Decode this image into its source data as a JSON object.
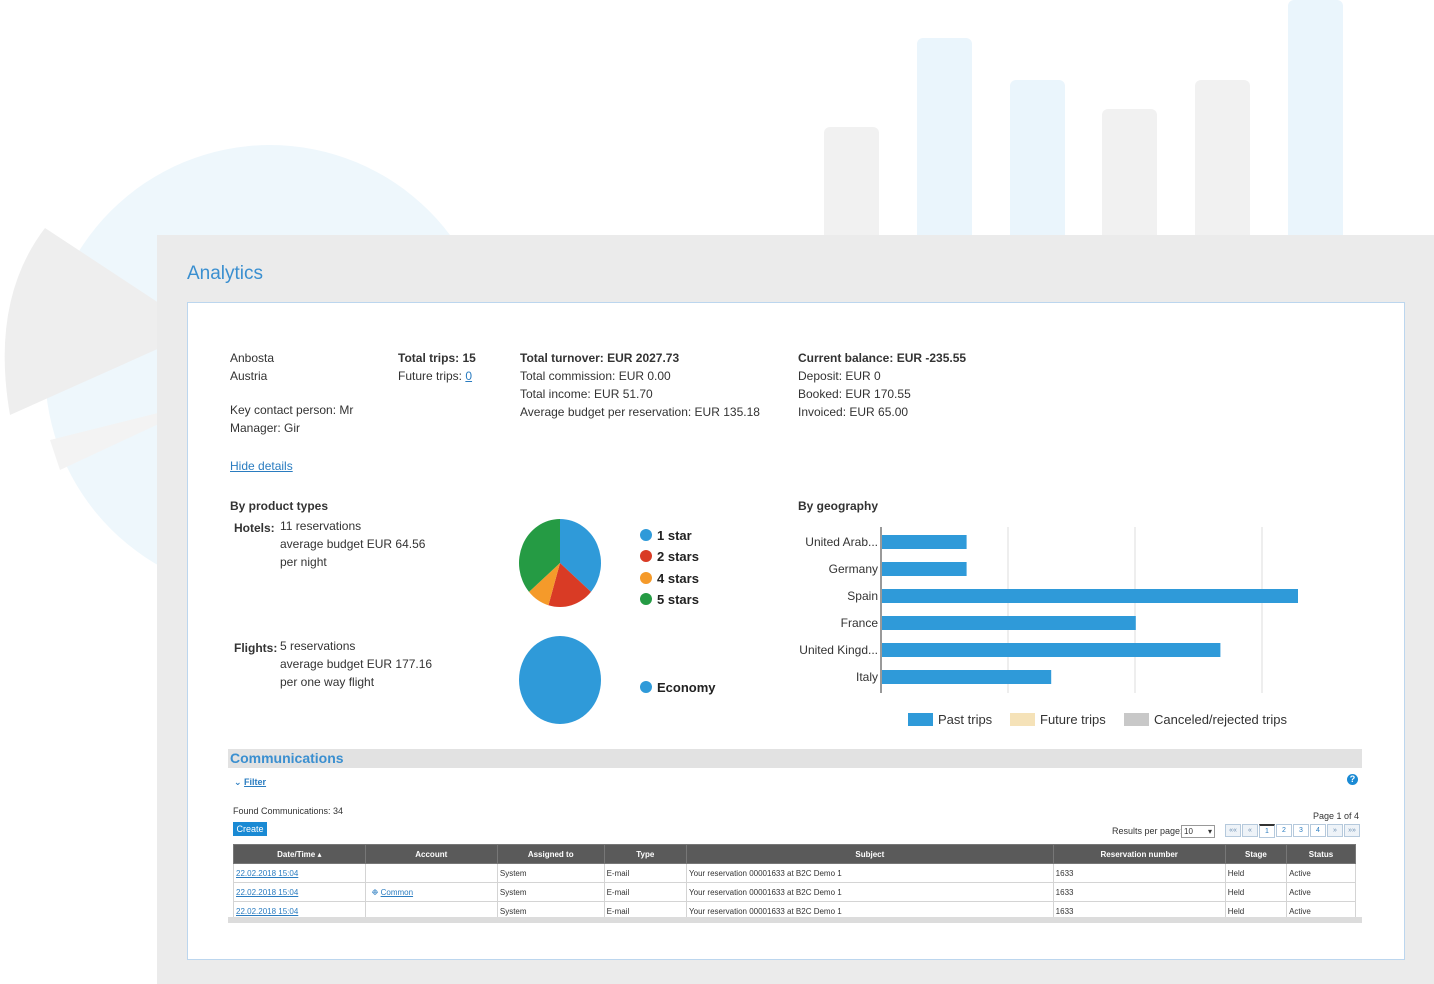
{
  "colors": {
    "accent": "#3a8fd0",
    "bar_blue": "#2f9ad9",
    "star_1": "#2f9ad9",
    "star_2": "#d93b25",
    "star_4": "#f59a2a",
    "star_5": "#259b44",
    "future": "#f5e2b8",
    "canceled": "#c8c8c8"
  },
  "panel": {
    "title": "Analytics"
  },
  "account": {
    "name": "Anbosta",
    "country": "Austria",
    "key_contact": "Key contact person: Mr",
    "manager": "Manager: Gir",
    "hide_details": "Hide details"
  },
  "trips": {
    "total": "Total trips: 15",
    "future_label": "Future trips: ",
    "future_value": "0"
  },
  "turnover": {
    "total": "Total turnover: EUR 2027.73",
    "commission": "Total commission: EUR 0.00",
    "income": "Total income: EUR 51.70",
    "average": "Average budget per reservation: EUR 135.18"
  },
  "balance": {
    "current": "Current balance: EUR -235.55",
    "deposit": "Deposit: EUR 0",
    "booked": "Booked: EUR 170.55",
    "invoiced": "Invoiced: EUR 65.00"
  },
  "product_types": {
    "heading": "By product types",
    "hotels_label": "Hotels:",
    "hotels_line1": "11 reservations",
    "hotels_line2": "average budget EUR 64.56",
    "hotels_line3": "per night",
    "flights_label": "Flights:",
    "flights_line1": "5 reservations",
    "flights_line2": "average budget EUR 177.16",
    "flights_line3": "per one way flight"
  },
  "geography": {
    "heading": "By geography"
  },
  "chart_data": [
    {
      "type": "pie",
      "categories": [
        "1 star",
        "2 stars",
        "4 stars",
        "5 stars"
      ],
      "values": [
        4,
        2,
        1,
        4
      ]
    },
    {
      "type": "pie",
      "categories": [
        "Economy"
      ],
      "values": [
        5
      ]
    },
    {
      "type": "bar",
      "orientation": "horizontal",
      "categories": [
        "United Arab...",
        "Germany",
        "Spain",
        "France",
        "United Kingd...",
        "Italy"
      ],
      "series": [
        {
          "name": "Past trips",
          "values": [
            1,
            1,
            5,
            3,
            4,
            2
          ]
        },
        {
          "name": "Future trips",
          "values": [
            0,
            0,
            0,
            0,
            0,
            0
          ]
        },
        {
          "name": "Canceled/rejected trips",
          "values": [
            0,
            0,
            0,
            0,
            0,
            0
          ]
        }
      ],
      "xlim": [
        0,
        5
      ],
      "grid": true,
      "legend": "bottom"
    }
  ],
  "communications": {
    "title": "Communications",
    "filter": "Filter",
    "found": "Found Communications: 34",
    "create": "Create",
    "help": "?",
    "results_per_page": "Results per page:",
    "rpp_value": "10",
    "page_info": "Page 1 of 4",
    "pager": [
      "««",
      "«",
      "1",
      "2",
      "3",
      "4",
      "»",
      "»»"
    ],
    "columns": [
      "Date/Time ▴",
      "Account",
      "Assigned to",
      "Type",
      "Subject",
      "Reservation number",
      "Stage",
      "Status"
    ],
    "rows": [
      {
        "date": "22.02.2018 15:04",
        "account": "",
        "assigned": "System",
        "type": "E-mail",
        "subject": "Your reservation 00001633 at B2C Demo 1",
        "res": "1633",
        "stage": "Held",
        "status": "Active"
      },
      {
        "date": "22.02.2018 15:04",
        "account": "Common",
        "assigned": "System",
        "type": "E-mail",
        "subject": "Your reservation 00001633 at B2C Demo 1",
        "res": "1633",
        "stage": "Held",
        "status": "Active"
      },
      {
        "date": "22.02.2018 15:04",
        "account": "",
        "assigned": "System",
        "type": "E-mail",
        "subject": "Your reservation 00001633 at B2C Demo 1",
        "res": "1633",
        "stage": "Held",
        "status": "Active"
      }
    ]
  }
}
